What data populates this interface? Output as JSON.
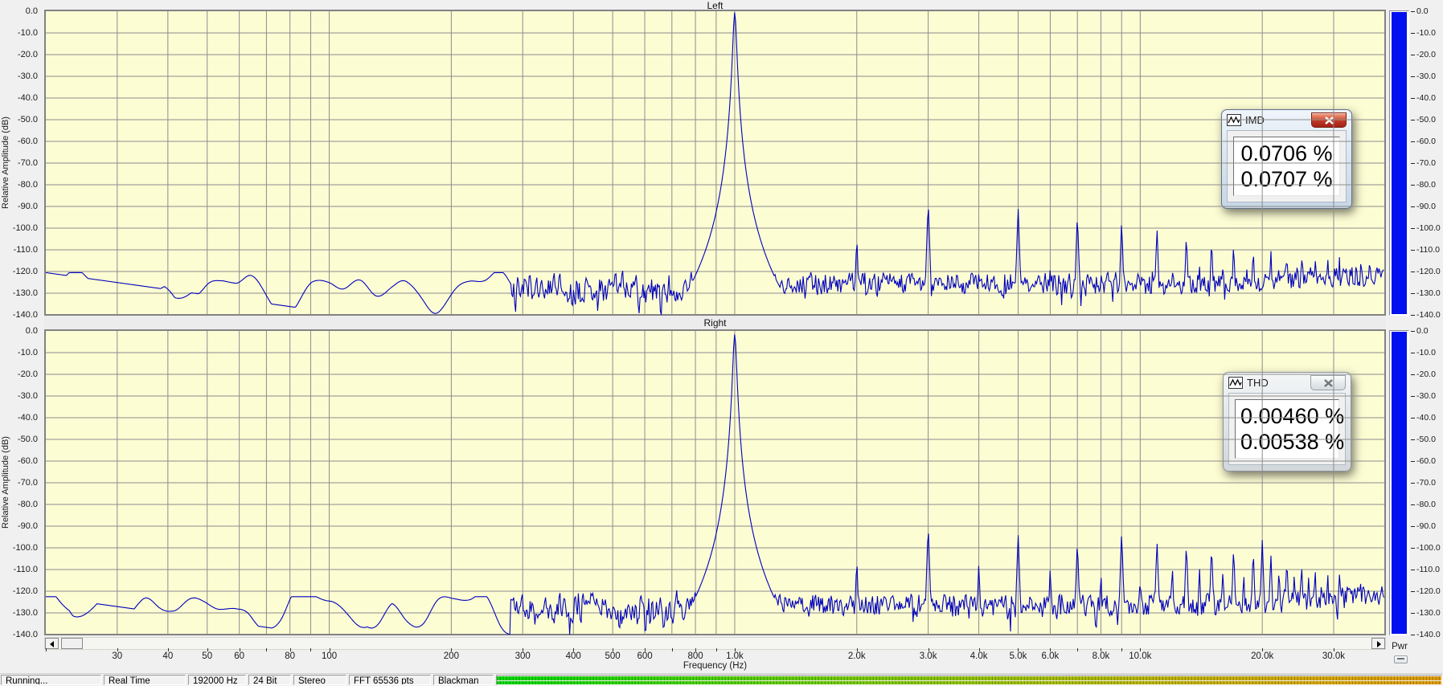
{
  "app": {
    "frequency_axis_label": "Frequency (Hz)",
    "amplitude_axis_label": "Relative Amplitude  (dB)",
    "pwr_meter_label": "Pwr"
  },
  "status_bar": {
    "items": [
      "Running...",
      "Real Time",
      "192000 Hz",
      "24 Bit",
      "Stereo",
      "FFT 65536 pts",
      "Blackman"
    ]
  },
  "windows": {
    "imd": {
      "title": "IMD",
      "values": [
        "0.0706 %",
        "0.0707 %"
      ],
      "active": true
    },
    "thd": {
      "title": "THD",
      "values": [
        "0.00460 %",
        "0.00538 %"
      ],
      "active": false
    }
  },
  "colors": {
    "plot_background": "#fdfdd4",
    "grid": "#8c8c8c",
    "trace": "#0000bd",
    "level_meter": "#0010ee",
    "close_button_active": "#bc3425"
  },
  "chart_data": [
    {
      "type": "line",
      "title": "Left",
      "xlabel": "Frequency (Hz)",
      "ylabel": "Relative Amplitude  (dB)",
      "x_scale": "log",
      "xlim": [
        20,
        40000
      ],
      "ylim": [
        -140,
        0
      ],
      "y_tick_labels": [
        "0.0",
        "-10.0",
        "-20.0",
        "-30.0",
        "-40.0",
        "-50.0",
        "-60.0",
        "-70.0",
        "-80.0",
        "-90.0",
        "-100.0",
        "-110.0",
        "-120.0",
        "-130.0",
        "-140.0"
      ],
      "x_tick_values": [
        30,
        40,
        50,
        60,
        80,
        100,
        200,
        300,
        400,
        500,
        600,
        800,
        1000,
        2000,
        3000,
        4000,
        5000,
        6000,
        8000,
        10000,
        20000,
        30000
      ],
      "x_tick_labels": [
        "30",
        "40",
        "50",
        "60",
        "80",
        "100",
        "200",
        "300",
        "400",
        "500",
        "600",
        "800",
        "1.0k",
        "2.0k",
        "3.0k",
        "4.0k",
        "5.0k",
        "6.0k",
        "8.0k",
        "10.0k",
        "20.0k",
        "30.0k"
      ],
      "peak": {
        "freq_hz": 1000,
        "level_db": -0.5
      },
      "lf_plateau_db": -120.5,
      "noise_floor_db": -126,
      "harmonics_freq_db": [
        [
          2000,
          -103
        ],
        [
          3000,
          -87
        ],
        [
          4000,
          -119
        ],
        [
          5000,
          -90
        ],
        [
          6000,
          -117
        ],
        [
          7000,
          -93
        ],
        [
          8000,
          -118
        ],
        [
          9000,
          -96
        ],
        [
          10000,
          -119
        ],
        [
          11000,
          -99
        ],
        [
          12000,
          -117
        ],
        [
          13000,
          -102
        ],
        [
          14000,
          -116
        ],
        [
          15000,
          -104
        ],
        [
          16000,
          -116
        ],
        [
          17000,
          -106
        ],
        [
          19000,
          -108
        ],
        [
          21000,
          -109
        ],
        [
          23000,
          -110
        ],
        [
          25000,
          -111
        ],
        [
          27000,
          -112
        ],
        [
          29000,
          -112
        ],
        [
          31000,
          -113
        ],
        [
          33000,
          -114
        ],
        [
          35000,
          -115
        ],
        [
          37000,
          -115
        ]
      ]
    },
    {
      "type": "line",
      "title": "Right",
      "xlabel": "Frequency (Hz)",
      "ylabel": "Relative Amplitude  (dB)",
      "x_scale": "log",
      "xlim": [
        20,
        40000
      ],
      "ylim": [
        -140,
        0
      ],
      "y_tick_labels": [
        "0.0",
        "-10.0",
        "-20.0",
        "-30.0",
        "-40.0",
        "-50.0",
        "-60.0",
        "-70.0",
        "-80.0",
        "-90.0",
        "-100.0",
        "-110.0",
        "-120.0",
        "-130.0",
        "-140.0"
      ],
      "x_tick_values": [
        30,
        40,
        50,
        60,
        80,
        100,
        200,
        300,
        400,
        500,
        600,
        800,
        1000,
        2000,
        3000,
        4000,
        5000,
        6000,
        8000,
        10000,
        20000,
        30000
      ],
      "x_tick_labels": [
        "30",
        "40",
        "50",
        "60",
        "80",
        "100",
        "200",
        "300",
        "400",
        "500",
        "600",
        "800",
        "1.0k",
        "2.0k",
        "3.0k",
        "4.0k",
        "5.0k",
        "6.0k",
        "8.0k",
        "10.0k",
        "20.0k",
        "30.0k"
      ],
      "peak": {
        "freq_hz": 1000,
        "level_db": -1.5
      },
      "lf_plateau_db": -122.5,
      "noise_floor_db": -127,
      "harmonics_freq_db": [
        [
          2000,
          -104
        ],
        [
          3000,
          -89
        ],
        [
          4000,
          -106
        ],
        [
          5000,
          -93
        ],
        [
          6000,
          -108
        ],
        [
          7000,
          -96
        ],
        [
          8000,
          -110
        ],
        [
          9000,
          -92
        ],
        [
          10000,
          -112
        ],
        [
          11000,
          -96
        ],
        [
          12000,
          -107
        ],
        [
          13000,
          -97
        ],
        [
          14000,
          -108
        ],
        [
          15000,
          -98
        ],
        [
          16000,
          -109
        ],
        [
          17000,
          -99
        ],
        [
          18000,
          -110
        ],
        [
          19000,
          -100
        ],
        [
          20000,
          -96
        ],
        [
          21000,
          -102
        ],
        [
          22000,
          -108
        ],
        [
          23000,
          -104
        ],
        [
          24000,
          -110
        ],
        [
          25000,
          -106
        ],
        [
          26000,
          -112
        ],
        [
          27000,
          -108
        ],
        [
          28000,
          -113
        ],
        [
          29000,
          -110
        ],
        [
          31000,
          -112
        ],
        [
          33000,
          -114
        ],
        [
          35000,
          -115
        ]
      ]
    }
  ]
}
